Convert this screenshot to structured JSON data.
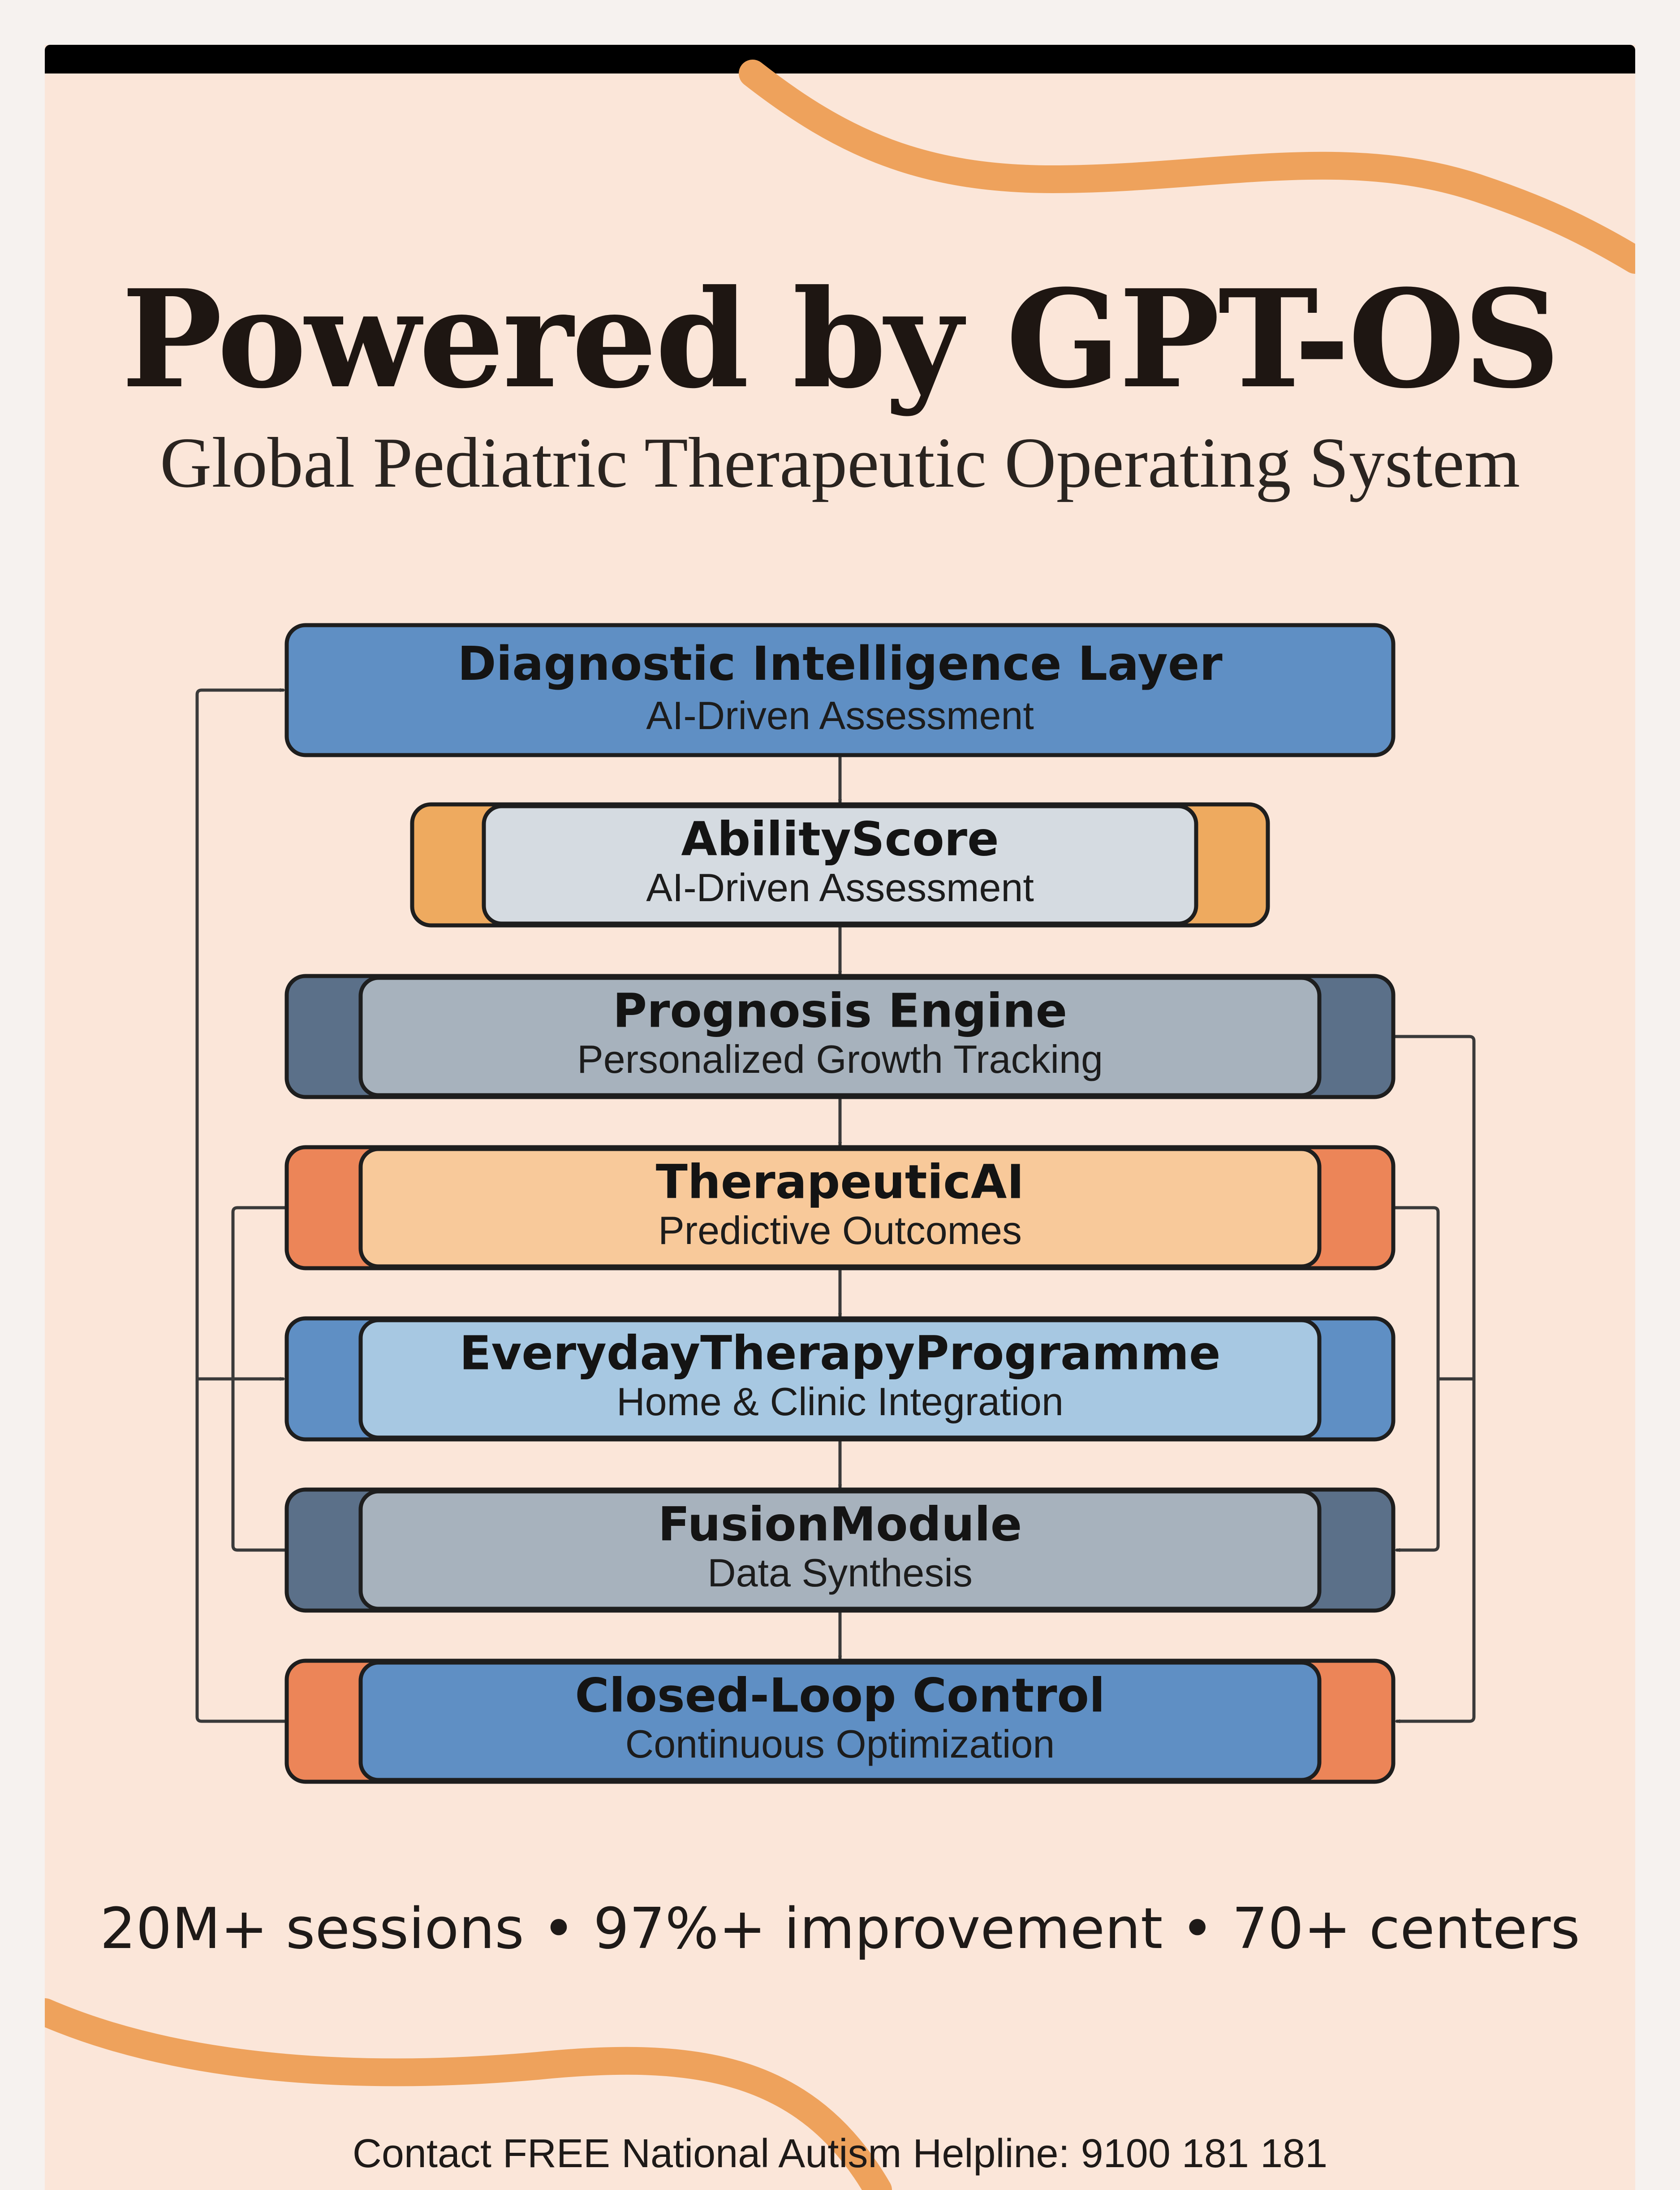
{
  "header": {
    "title": "Powered by GPT-OS",
    "subtitle": "Global Pediatric Therapeutic Operating System"
  },
  "layers": [
    {
      "title": "Diagnostic Intelligence Layer",
      "subtitle": "AI-Driven Assessment",
      "main_color": "#5f8fc4",
      "side_color": "#5f8fc4"
    },
    {
      "title": "AbilityScore",
      "subtitle": "AI-Driven Assessment",
      "main_color": "#d5dbe1",
      "side_color": "#eeaa5f"
    },
    {
      "title": "Prognosis Engine",
      "subtitle": "Personalized Growth Tracking",
      "main_color": "#a7b2bd",
      "side_color": "#5b7089"
    },
    {
      "title": "TherapeuticAI",
      "subtitle": "Predictive Outcomes",
      "main_color": "#f8c99a",
      "side_color": "#ec8558"
    },
    {
      "title": "EverydayTherapyProgramme",
      "subtitle": "Home & Clinic Integration",
      "main_color": "#a7c8e2",
      "side_color": "#5f8fc4"
    },
    {
      "title": "FusionModule",
      "subtitle": "Data Synthesis",
      "main_color": "#a7b2bd",
      "side_color": "#5b7089"
    },
    {
      "title": "Closed-Loop Control",
      "subtitle": "Continuous Optimization",
      "main_color": "#5f8fc4",
      "side_color": "#ec8558"
    }
  ],
  "stats": "20M+ sessions • 97%+ improvement • 70+ centers",
  "contact": "Contact FREE National Autism Helpline: 9100 181 181",
  "colors": {
    "poster_bg": "#fbe6d9",
    "accent_swirl": "#eea25c",
    "outline": "#1e1e1e"
  }
}
